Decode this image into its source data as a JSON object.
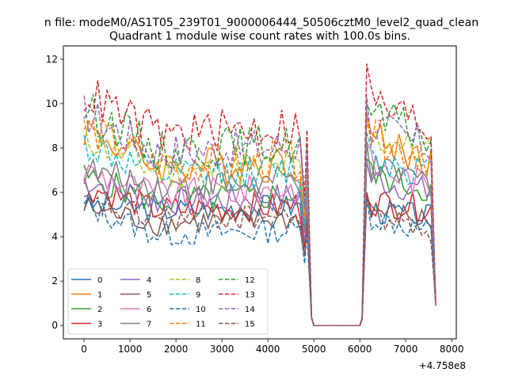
{
  "chart_data": {
    "type": "line",
    "suptitle": "n file: modeM0/AS1T05_239T01_9000006444_50506cztM0_level2_quad_clean",
    "title": "Quadrant 1 module wise count rates with 100.0s bins.",
    "xlabel": "",
    "ylabel": "",
    "offset_text": "+4.758e8",
    "xlim": [
      -450,
      8100
    ],
    "ylim": [
      -0.6,
      12.6
    ],
    "xticks": [
      0,
      1000,
      2000,
      3000,
      4000,
      5000,
      6000,
      7000,
      8000
    ],
    "xtick_labels": [
      "0",
      "1000",
      "2000",
      "3000",
      "4000",
      "5000",
      "6000",
      "7000",
      "8000"
    ],
    "yticks": [
      0,
      2,
      4,
      6,
      8,
      10,
      12
    ],
    "ytick_labels": [
      "0",
      "2",
      "4",
      "6",
      "8",
      "10",
      "12"
    ],
    "legend_position": "lower-left",
    "gap_x": [
      4950,
      6050
    ],
    "series": [
      {
        "name": "0",
        "color": "#1f77b4",
        "dash": "solid",
        "a": 5.5,
        "b": 5.2,
        "c": 5.4,
        "d": 6.0,
        "e": 5.2,
        "f": 4.9
      },
      {
        "name": "1",
        "color": "#ff7f0e",
        "dash": "solid",
        "a": 8.9,
        "b": 7.2,
        "c": 7.3,
        "d": 9.5,
        "e": 8.5,
        "f": 7.4
      },
      {
        "name": "2",
        "color": "#2ca02c",
        "dash": "solid",
        "a": 6.7,
        "b": 5.6,
        "c": 5.9,
        "d": 7.5,
        "e": 6.8,
        "f": 6.1
      },
      {
        "name": "3",
        "color": "#d62728",
        "dash": "solid",
        "a": 6.3,
        "b": 5.2,
        "c": 5.4,
        "d": 6.0,
        "e": 5.6,
        "f": 5.3
      },
      {
        "name": "4",
        "color": "#9467bd",
        "dash": "solid",
        "a": 6.6,
        "b": 5.6,
        "c": 5.8,
        "d": 7.4,
        "e": 6.6,
        "f": 6.0
      },
      {
        "name": "5",
        "color": "#8c564b",
        "dash": "solid",
        "a": 5.3,
        "b": 4.6,
        "c": 4.8,
        "d": 5.8,
        "e": 5.2,
        "f": 4.7
      },
      {
        "name": "6",
        "color": "#e377c2",
        "dash": "solid",
        "a": 7.0,
        "b": 5.9,
        "c": 6.2,
        "d": 8.3,
        "e": 7.2,
        "f": 6.3
      },
      {
        "name": "7",
        "color": "#7f7f7f",
        "dash": "solid",
        "a": 7.0,
        "b": 6.3,
        "c": 6.5,
        "d": 8.3,
        "e": 7.0,
        "f": 6.5
      },
      {
        "name": "8",
        "color": "#bcbd22",
        "dash": "dashed",
        "a": 8.6,
        "b": 6.9,
        "c": 7.1,
        "d": 9.2,
        "e": 8.4,
        "f": 7.8
      },
      {
        "name": "9",
        "color": "#17becf",
        "dash": "dashed",
        "a": 8.2,
        "b": 6.7,
        "c": 7.0,
        "d": 8.7,
        "e": 7.6,
        "f": 6.9
      },
      {
        "name": "10",
        "color": "#1f77b4",
        "dash": "dashed",
        "a": 5.4,
        "b": 4.1,
        "c": 4.3,
        "d": 5.8,
        "e": 4.9,
        "f": 4.2
      },
      {
        "name": "11",
        "color": "#ff7f0e",
        "dash": "dashed",
        "a": 9.0,
        "b": 7.2,
        "c": 7.5,
        "d": 9.6,
        "e": 8.5,
        "f": 7.6
      },
      {
        "name": "12",
        "color": "#2ca02c",
        "dash": "dashed",
        "a": 9.8,
        "b": 7.9,
        "c": 8.2,
        "d": 10.0,
        "e": 9.4,
        "f": 8.5
      },
      {
        "name": "13",
        "color": "#d62728",
        "dash": "dashed",
        "a": 10.5,
        "b": 8.6,
        "c": 9.0,
        "d": 11.8,
        "e": 10.1,
        "f": 8.9
      },
      {
        "name": "14",
        "color": "#9467bd",
        "dash": "dashed",
        "a": 9.6,
        "b": 7.8,
        "c": 8.1,
        "d": 10.3,
        "e": 9.0,
        "f": 8.0
      },
      {
        "name": "15",
        "color": "#8c564b",
        "dash": "dashed",
        "a": 5.5,
        "b": 4.8,
        "c": 4.9,
        "d": 5.9,
        "e": 5.0,
        "f": 4.3
      }
    ]
  }
}
